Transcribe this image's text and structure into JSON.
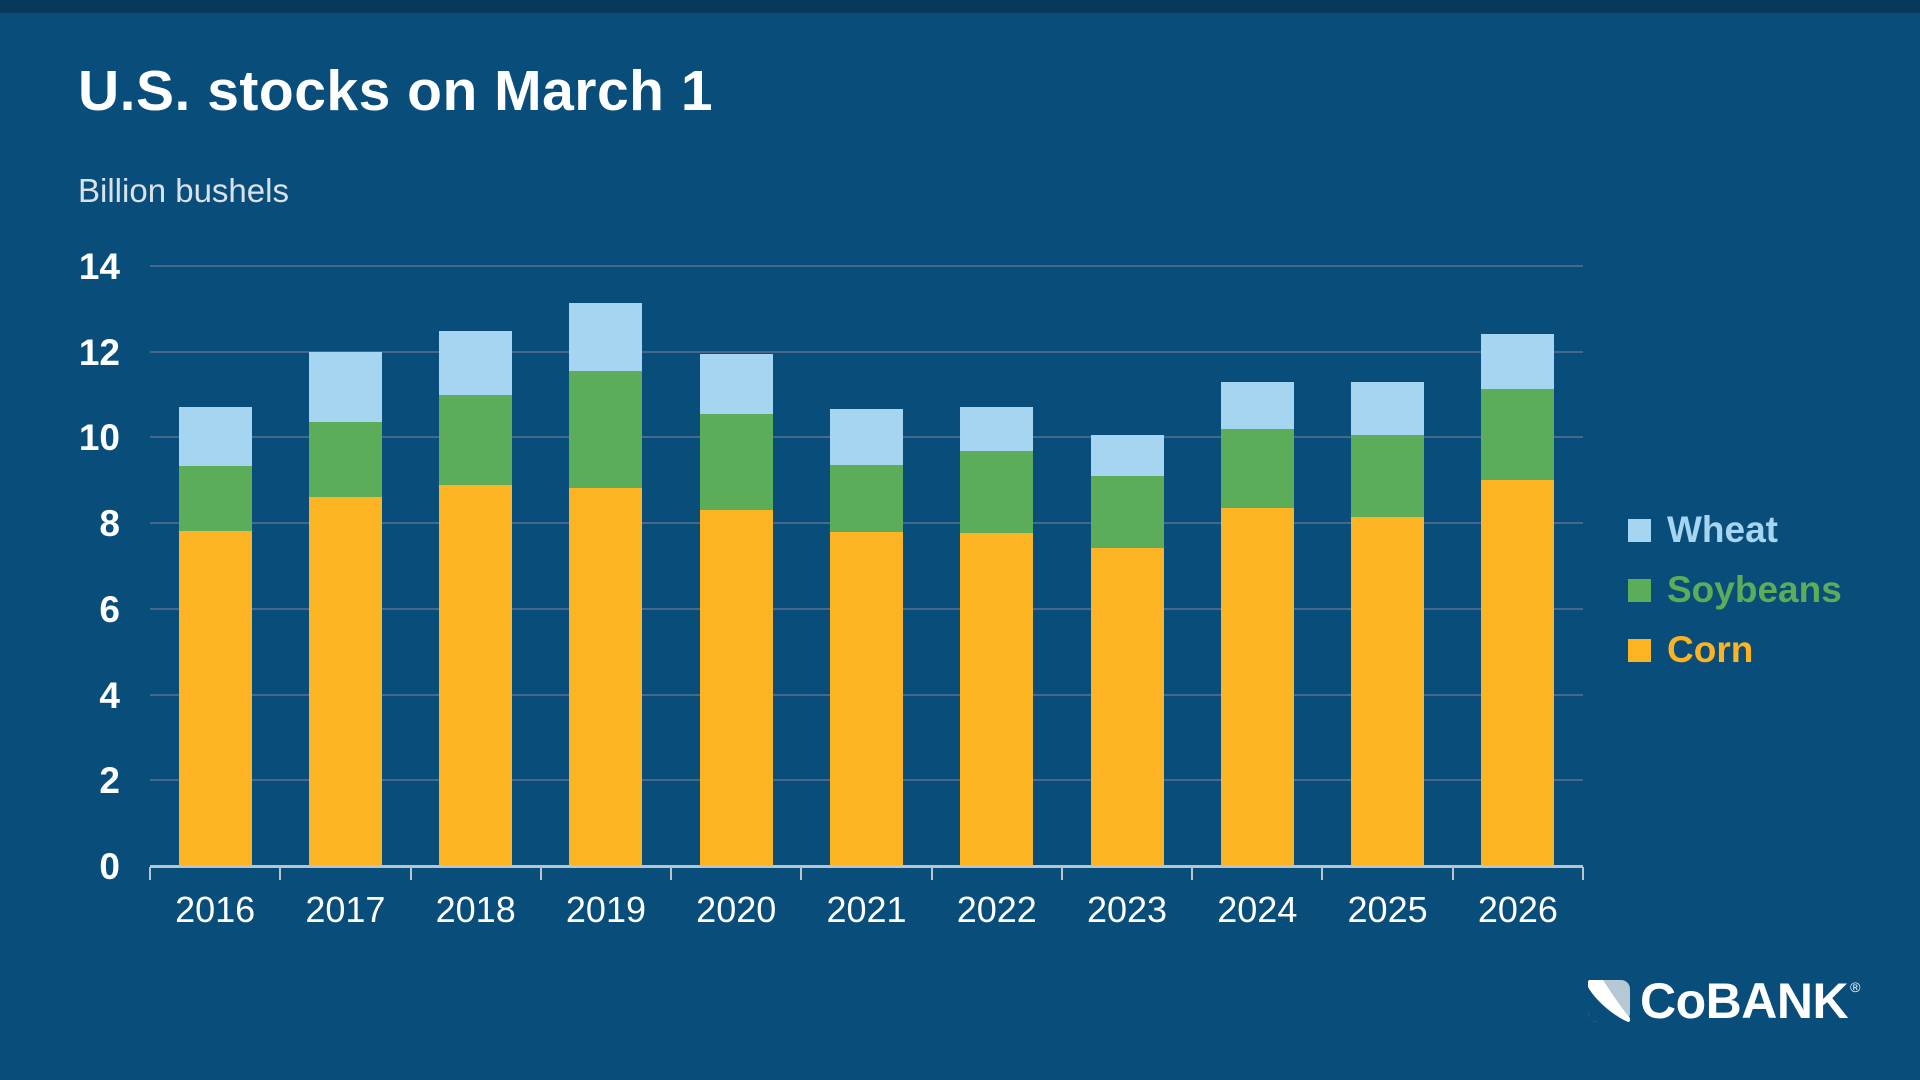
{
  "page": {
    "title": "U.S. stocks on March 1",
    "subtitle": "Billion bushels",
    "background_color": "#094D7A"
  },
  "chart_data": {
    "type": "bar",
    "stacked": true,
    "title": "U.S. stocks on March 1",
    "subtitle": "Billion bushels",
    "xlabel": "",
    "ylabel": "Billion bushels",
    "categories": [
      "2016",
      "2017",
      "2018",
      "2019",
      "2020",
      "2021",
      "2022",
      "2023",
      "2024",
      "2025",
      "2026"
    ],
    "series": [
      {
        "name": "Corn",
        "color": "#FDB422",
        "values": [
          7.81,
          8.62,
          8.89,
          8.82,
          8.31,
          7.8,
          7.76,
          7.42,
          8.35,
          8.15,
          9.0
        ]
      },
      {
        "name": "Soybeans",
        "color": "#5CAD59",
        "values": [
          1.53,
          1.73,
          2.11,
          2.73,
          2.23,
          1.55,
          1.93,
          1.69,
          1.85,
          1.91,
          2.12
        ]
      },
      {
        "name": "Wheat",
        "color": "#A6D5F2",
        "values": [
          1.37,
          1.65,
          1.49,
          1.58,
          1.41,
          1.32,
          1.02,
          0.94,
          1.09,
          1.24,
          1.3
        ]
      }
    ],
    "totals": [
      10.71,
      12.0,
      12.49,
      13.13,
      11.95,
      10.67,
      10.71,
      10.05,
      11.29,
      11.3,
      12.42
    ],
    "ylim": [
      0,
      14
    ],
    "yticks": [
      0,
      2,
      4,
      6,
      8,
      10,
      12,
      14
    ],
    "grid": true,
    "gridline_color": "#46698B",
    "axis_color": "#B9C4CE",
    "legend_position": "right",
    "legend_order": [
      "Wheat",
      "Soybeans",
      "Corn"
    ]
  },
  "legend": {
    "items": [
      {
        "label": "Wheat",
        "color": "#A6D5F2"
      },
      {
        "label": "Soybeans",
        "color": "#5CAD59"
      },
      {
        "label": "Corn",
        "color": "#FDB422"
      }
    ]
  },
  "branding": {
    "logo_text": "CoBANK",
    "registered_mark": "®"
  }
}
